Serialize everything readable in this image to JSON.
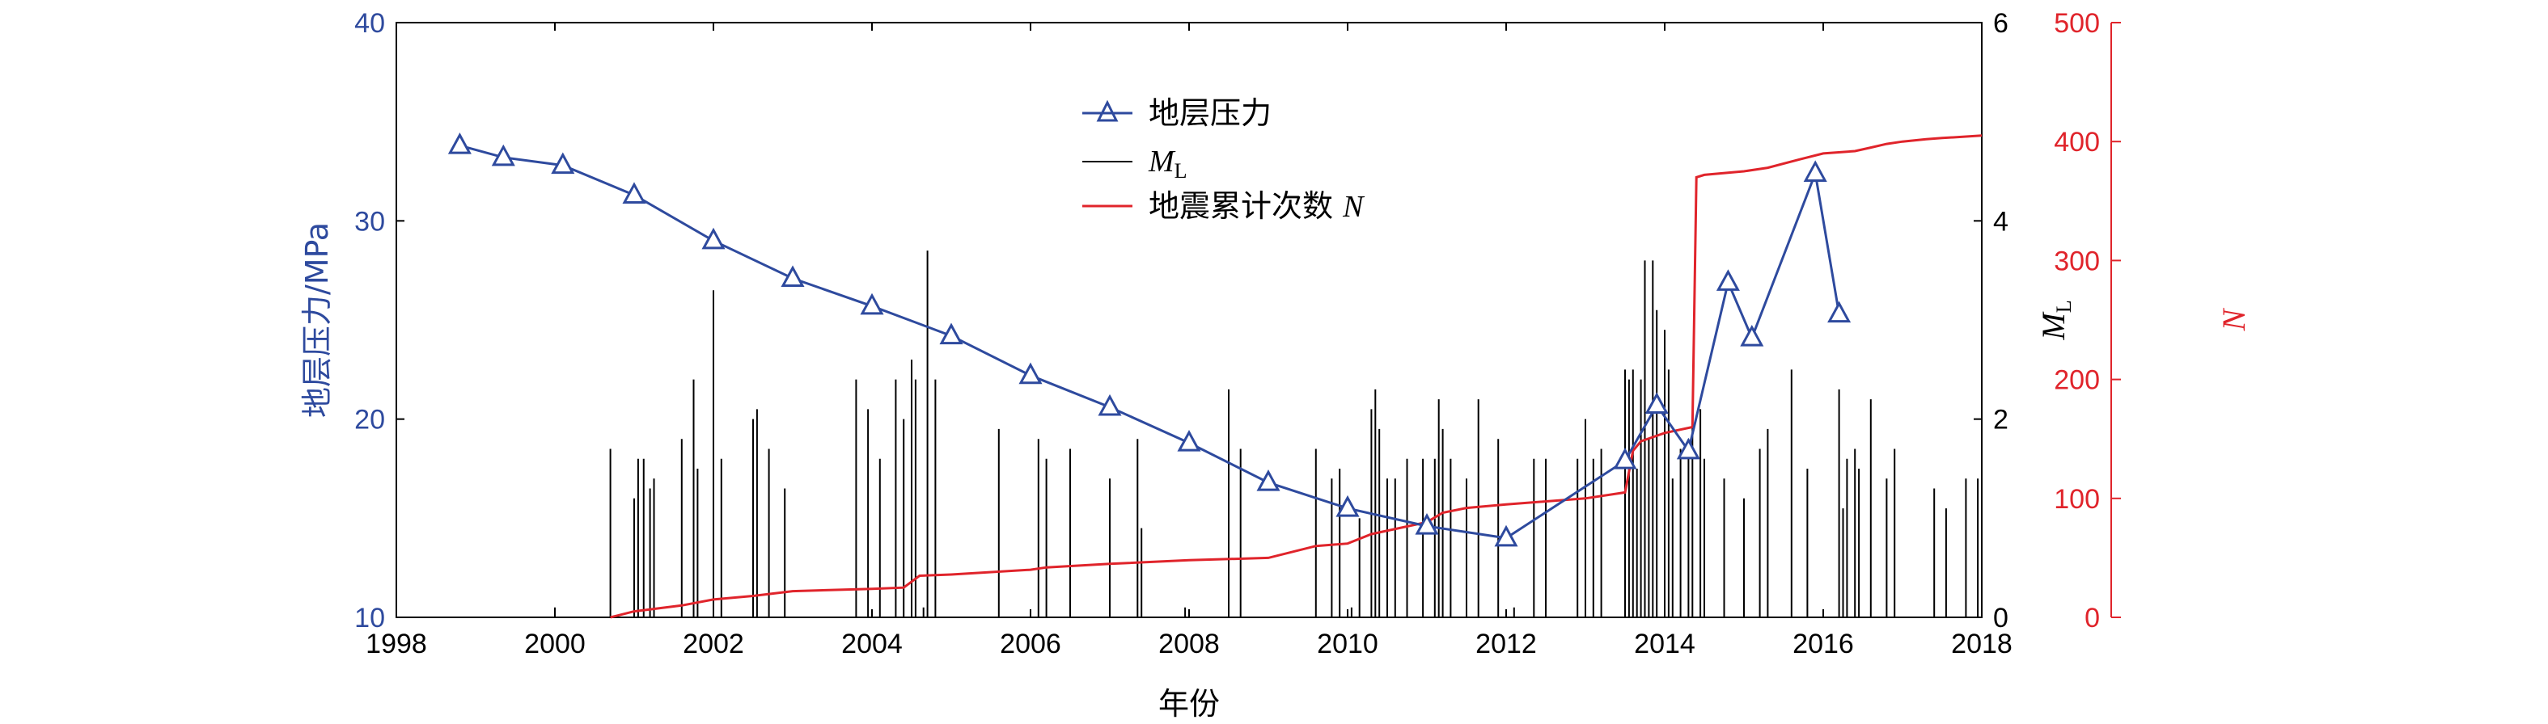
{
  "chart_data": {
    "type": "line",
    "xlabel": "年份",
    "xlim": [
      1998,
      2018
    ],
    "xticks": [
      "1998",
      "2000",
      "2002",
      "2004",
      "2006",
      "2008",
      "2010",
      "2012",
      "2014",
      "2016",
      "2018"
    ],
    "y_left": {
      "label": "地层压力/MPa",
      "lim": [
        10,
        40
      ],
      "ticks": [
        "10",
        "20",
        "30",
        "40"
      ],
      "color": "#2e4a9e"
    },
    "y_right1": {
      "label_main": "M",
      "label_sub": "L",
      "lim": [
        0,
        6
      ],
      "ticks": [
        "0",
        "2",
        "4",
        "6"
      ],
      "color": "#000000"
    },
    "y_right2": {
      "label": "N",
      "lim": [
        0,
        500
      ],
      "ticks": [
        "0",
        "100",
        "200",
        "300",
        "400",
        "500"
      ],
      "color": "#e0242b"
    },
    "legend": {
      "position": "top-center",
      "pressure": "地层压力",
      "ml_main": "M",
      "ml_sub": "L",
      "n_prefix": "地震累计次数 ",
      "n_italic": "N"
    },
    "series": [
      {
        "name": "地层压力",
        "axis": "left",
        "color": "#2e4a9e",
        "marker": "triangle",
        "x": [
          1998.8,
          1999.35,
          2000.1,
          2001.0,
          2002.0,
          2003.0,
          2004.0,
          2005.0,
          2006.0,
          2007.0,
          2008.0,
          2009.0,
          2010.0,
          2011.0,
          2012.0,
          2013.5,
          2013.9,
          2014.3,
          2014.8,
          2015.1,
          2015.9,
          2016.2
        ],
        "y": [
          33.8,
          33.2,
          32.8,
          31.3,
          29.0,
          27.1,
          25.7,
          24.2,
          22.2,
          20.6,
          18.8,
          16.8,
          15.5,
          14.6,
          14.0,
          17.9,
          20.7,
          18.4,
          26.9,
          24.1,
          32.4,
          25.3
        ]
      },
      {
        "name": "M_L",
        "axis": "right1",
        "color": "#000000",
        "type": "stem",
        "x": [
          2000.0,
          2000.7,
          2001.0,
          2001.05,
          2001.12,
          2001.2,
          2001.25,
          2001.6,
          2001.75,
          2001.8,
          2002.0,
          2002.1,
          2002.5,
          2002.55,
          2002.7,
          2002.9,
          2003.8,
          2003.95,
          2004.1,
          2004.3,
          2004.4,
          2004.5,
          2004.55,
          2004.65,
          2004.7,
          2004.8,
          2005.6,
          2006.1,
          2006.2,
          2006.5,
          2007.0,
          2007.35,
          2007.4,
          2007.95,
          2008.5,
          2008.65,
          2009.6,
          2009.8,
          2009.9,
          2010.05,
          2010.15,
          2010.3,
          2010.35,
          2010.4,
          2010.5,
          2010.6,
          2010.75,
          2010.95,
          2011.1,
          2011.15,
          2011.2,
          2011.3,
          2011.5,
          2011.65,
          2011.9,
          2012.1,
          2012.35,
          2012.5,
          2012.9,
          2013.0,
          2013.1,
          2013.2,
          2013.5,
          2013.55,
          2013.6,
          2013.65,
          2013.7,
          2013.75,
          2013.8,
          2013.85,
          2013.9,
          2014.0,
          2014.05,
          2014.1,
          2014.2,
          2014.3,
          2014.35,
          2014.45,
          2014.5,
          2014.75,
          2015.0,
          2015.2,
          2015.3,
          2015.6,
          2015.8,
          2016.2,
          2016.25,
          2016.3,
          2016.4,
          2016.45,
          2016.6,
          2016.8,
          2016.9,
          2017.4,
          2017.55,
          2017.8,
          2017.95
        ],
        "y": [
          0.1,
          1.7,
          1.2,
          1.6,
          1.6,
          1.3,
          1.4,
          1.8,
          2.4,
          1.5,
          3.3,
          1.6,
          2.0,
          2.1,
          1.7,
          1.3,
          2.4,
          2.1,
          1.6,
          2.4,
          2.0,
          2.6,
          2.4,
          0.1,
          3.7,
          2.4,
          1.9,
          1.8,
          1.6,
          1.7,
          1.4,
          1.8,
          0.9,
          0.1,
          2.3,
          1.7,
          1.7,
          1.4,
          1.5,
          0.1,
          1.0,
          2.1,
          2.3,
          1.9,
          1.4,
          1.4,
          1.6,
          1.6,
          1.6,
          2.2,
          1.9,
          1.6,
          1.4,
          2.2,
          1.8,
          0.1,
          1.6,
          1.6,
          1.6,
          2.0,
          1.6,
          1.7,
          2.5,
          2.4,
          2.5,
          1.5,
          2.4,
          3.6,
          1.8,
          3.6,
          3.1,
          2.9,
          2.5,
          1.4,
          1.7,
          1.8,
          2.0,
          2.1,
          1.6,
          1.4,
          1.2,
          1.7,
          1.9,
          2.5,
          1.5,
          2.3,
          1.1,
          1.6,
          1.7,
          1.5,
          2.2,
          1.4,
          1.7,
          1.3,
          1.1,
          1.4,
          1.4
        ]
      },
      {
        "name": "地震累计次数 N",
        "axis": "right2",
        "color": "#e0242b",
        "type": "step",
        "x": [
          2000.7,
          2001.0,
          2001.6,
          2002.0,
          2002.5,
          2003.0,
          2004.0,
          2004.4,
          2004.6,
          2005.0,
          2006.0,
          2006.2,
          2007.0,
          2008.0,
          2009.0,
          2009.6,
          2010.0,
          2010.3,
          2011.0,
          2011.2,
          2011.5,
          2012.0,
          2013.0,
          2013.5,
          2013.6,
          2013.7,
          2014.0,
          2014.35,
          2014.4,
          2014.5,
          2015.0,
          2015.3,
          2015.7,
          2016.0,
          2016.4,
          2016.6,
          2016.8,
          2017.0,
          2017.3,
          2017.5,
          2018.0
        ],
        "y": [
          0,
          5,
          10,
          15,
          18,
          22,
          24,
          25,
          35,
          36,
          40,
          42,
          45,
          48,
          50,
          60,
          62,
          70,
          80,
          88,
          92,
          95,
          100,
          105,
          140,
          148,
          155,
          160,
          370,
          372,
          375,
          378,
          385,
          390,
          392,
          395,
          398,
          400,
          402,
          403,
          405
        ]
      }
    ]
  }
}
